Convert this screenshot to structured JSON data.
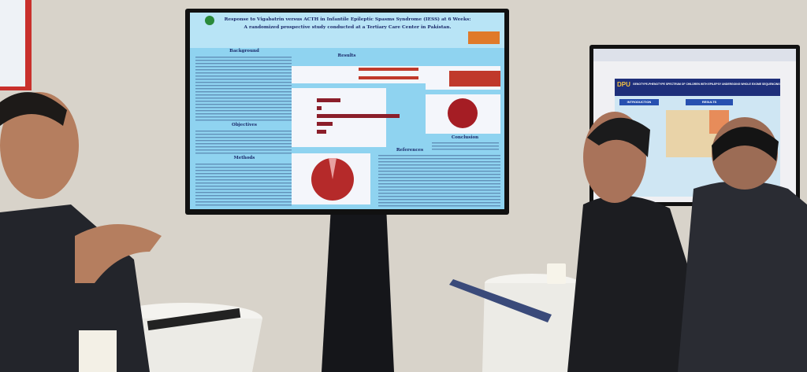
{
  "left_screen": {
    "title": "Response to Vigabatrin versus ACTH in Infantile Epileptic Spasms Syndrome (IESS) at 6 Weeks:",
    "subtitle": "A randomized prospective study conducted at a Tertiary Care Center in Pakistan.",
    "sections": [
      "Background",
      "Objectives",
      "Methods",
      "Results",
      "Conclusion",
      "References"
    ]
  },
  "right_screen": {
    "logo": "DPU",
    "title": "GENOTYPE-PHENOTYPE SPECTRUM OF CHILDREN WITH EPILEPSY UNDERGOING WHOLE EXOME SEQUENCING",
    "headings": [
      "INTRODUCTION",
      "RESULTS"
    ]
  }
}
